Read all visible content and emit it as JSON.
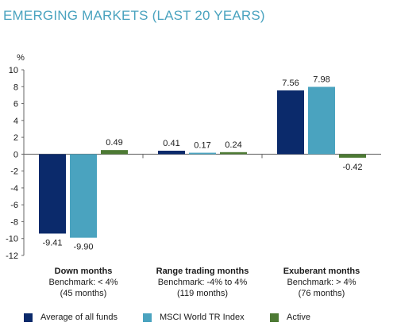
{
  "title": "EMERGING MARKETS (LAST 20 YEARS)",
  "colors": {
    "title": "#4aa3bf",
    "series": [
      "#0b2a6b",
      "#4aa3bf",
      "#4d7a34"
    ],
    "axis": "#666666"
  },
  "chart_data": {
    "type": "bar",
    "title": "EMERGING MARKETS (LAST 20 YEARS)",
    "ylabel": "%",
    "ylim": [
      -12,
      10
    ],
    "yticks": [
      10,
      8,
      6,
      4,
      2,
      0,
      -2,
      -4,
      -6,
      -8,
      -10,
      -12
    ],
    "grid": false,
    "legend": "bottom",
    "categories": [
      {
        "name": "Down months",
        "sub1": "Benchmark: < 4%",
        "sub2": "(45 months)"
      },
      {
        "name": "Range trading months",
        "sub1": "Benchmark: -4% to 4%",
        "sub2": "(119 months)"
      },
      {
        "name": "Exuberant months",
        "sub1": "Benchmark: > 4%",
        "sub2": "(76 months)"
      }
    ],
    "series": [
      {
        "name": "Average of all funds",
        "values": [
          -9.41,
          0.41,
          7.56
        ],
        "labels": [
          "-9.41",
          "0.41",
          "7.56"
        ]
      },
      {
        "name": "MSCI World TR Index",
        "values": [
          -9.9,
          0.17,
          7.98
        ],
        "labels": [
          "-9.90",
          "0.17",
          "7.98"
        ]
      },
      {
        "name": "Active",
        "values": [
          0.49,
          0.24,
          -0.42
        ],
        "labels": [
          "0.49",
          "0.24",
          "-0.42"
        ]
      }
    ]
  }
}
